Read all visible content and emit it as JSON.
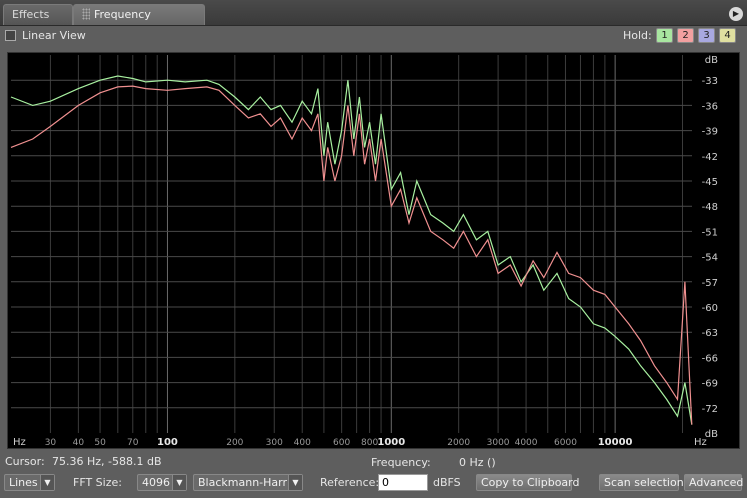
{
  "tabs": [
    {
      "label": "Effects",
      "active": false
    },
    {
      "label": "Frequency Analysis",
      "active": true,
      "close": "×"
    }
  ],
  "menu_icon": "▶",
  "options": {
    "linear_view_label": "Linear View",
    "linear_view_checked": false,
    "hold_label": "Hold:",
    "hold_buttons": [
      {
        "label": "1",
        "color": "#a8e6a0"
      },
      {
        "label": "2",
        "color": "#f2a0a0"
      },
      {
        "label": "3",
        "color": "#a8a8e0"
      },
      {
        "label": "4",
        "color": "#e0e0a0"
      }
    ]
  },
  "status": {
    "cursor_label": "Cursor:",
    "cursor_value": "75.36 Hz, -588.1 dB",
    "frequency_label": "Frequency:",
    "frequency_value": "0 Hz ()"
  },
  "toolbar": {
    "display_mode": "Lines",
    "fft_size_label": "FFT Size:",
    "fft_size": "4096",
    "window": "Blackmann-Harris",
    "reference_label": "Reference:",
    "reference_value": "0",
    "reference_unit": "dBFS",
    "copy_button": "Copy to Clipboard",
    "scan_button": "Scan selection",
    "advanced_button": "Advanced"
  },
  "chart_data": {
    "type": "line",
    "xscale": "log",
    "xlabel": "Hz",
    "ylabel": "dB",
    "xlim": [
      20,
      22050
    ],
    "ylim": [
      -75,
      -30
    ],
    "x_ticks": [
      {
        "value": 30,
        "label": "30"
      },
      {
        "value": 40,
        "label": "40"
      },
      {
        "value": 50,
        "label": "50"
      },
      {
        "value": 70,
        "label": "70"
      },
      {
        "value": 100,
        "label": "100"
      },
      {
        "value": 200,
        "label": "200"
      },
      {
        "value": 300,
        "label": "300"
      },
      {
        "value": 400,
        "label": "400"
      },
      {
        "value": 600,
        "label": "600"
      },
      {
        "value": 800,
        "label": "800"
      },
      {
        "value": 1000,
        "label": "1000"
      },
      {
        "value": 2000,
        "label": "2000"
      },
      {
        "value": 3000,
        "label": "3000"
      },
      {
        "value": 4000,
        "label": "4000"
      },
      {
        "value": 6000,
        "label": "6000"
      },
      {
        "value": 10000,
        "label": "10000"
      }
    ],
    "y_ticks": [
      -33,
      -36,
      -39,
      -42,
      -45,
      -48,
      -51,
      -54,
      -57,
      -60,
      -63,
      -66,
      -69,
      -72
    ],
    "grid": true,
    "series": [
      {
        "color": "#a8f0a0",
        "x": [
          20,
          25,
          30,
          40,
          50,
          60,
          70,
          80,
          100,
          120,
          150,
          170,
          200,
          230,
          260,
          290,
          320,
          360,
          400,
          440,
          470,
          500,
          520,
          560,
          600,
          640,
          680,
          720,
          760,
          800,
          850,
          900,
          1000,
          1100,
          1200,
          1300,
          1500,
          1700,
          1900,
          2100,
          2400,
          2700,
          3000,
          3400,
          3800,
          4300,
          4800,
          5500,
          6200,
          7000,
          8000,
          9000,
          10000,
          11500,
          13000,
          15000,
          17000,
          19000,
          20500,
          22000
        ],
        "y": [
          -35,
          -36,
          -35.5,
          -34,
          -33,
          -32.5,
          -32.8,
          -33.2,
          -33.0,
          -33.2,
          -33.0,
          -33.5,
          -35,
          -36.5,
          -35,
          -36.5,
          -36,
          -38,
          -35.5,
          -37,
          -34,
          -42,
          -38,
          -43,
          -39,
          -33,
          -40,
          -35,
          -41,
          -38,
          -43,
          -37,
          -46,
          -44,
          -49,
          -45,
          -49,
          -50,
          -51,
          -49,
          -52,
          -51,
          -55,
          -54,
          -57,
          -55,
          -58,
          -56,
          -59,
          -60,
          -62,
          -62.5,
          -63.5,
          -65,
          -67,
          -69,
          -71,
          -73,
          -69,
          -74
        ]
      },
      {
        "color": "#f09090",
        "x": [
          20,
          25,
          30,
          40,
          50,
          60,
          70,
          80,
          100,
          120,
          150,
          170,
          200,
          230,
          260,
          290,
          320,
          360,
          400,
          440,
          470,
          500,
          520,
          560,
          600,
          640,
          680,
          720,
          760,
          800,
          850,
          900,
          1000,
          1100,
          1200,
          1300,
          1500,
          1700,
          1900,
          2100,
          2400,
          2700,
          3000,
          3400,
          3800,
          4300,
          4800,
          5500,
          6200,
          7000,
          8000,
          9000,
          10000,
          11500,
          13000,
          15000,
          17000,
          19000,
          20500,
          22000
        ],
        "y": [
          -41,
          -40,
          -38.5,
          -36,
          -34.5,
          -33.8,
          -33.7,
          -34,
          -34.2,
          -34,
          -33.8,
          -34.2,
          -36,
          -37.5,
          -37,
          -38.5,
          -37.5,
          -40,
          -37.5,
          -39,
          -37,
          -45,
          -41,
          -45,
          -42,
          -36,
          -42,
          -37,
          -43,
          -40,
          -45,
          -40,
          -48,
          -46,
          -50,
          -47,
          -51,
          -52,
          -53,
          -51,
          -54,
          -52,
          -56,
          -55,
          -57.5,
          -54.5,
          -56.5,
          -53.5,
          -56,
          -56.5,
          -58,
          -58.5,
          -60,
          -62,
          -64,
          -67,
          -69,
          -71,
          -57,
          -74
        ]
      }
    ]
  }
}
